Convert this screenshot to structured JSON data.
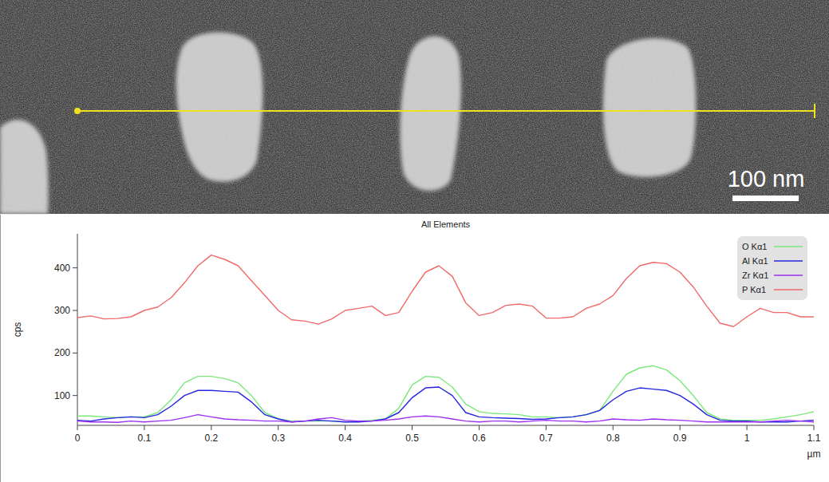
{
  "chart_data": {
    "type": "line",
    "title": "All Elements",
    "x_label": "µm",
    "y_label": "cps",
    "x": [
      0,
      0.02,
      0.04,
      0.06,
      0.08,
      0.1,
      0.12,
      0.14,
      0.16,
      0.18,
      0.2,
      0.22,
      0.24,
      0.26,
      0.28,
      0.3,
      0.32,
      0.34,
      0.36,
      0.38,
      0.4,
      0.42,
      0.44,
      0.46,
      0.48,
      0.5,
      0.52,
      0.54,
      0.56,
      0.58,
      0.6,
      0.62,
      0.64,
      0.66,
      0.68,
      0.7,
      0.72,
      0.74,
      0.76,
      0.78,
      0.8,
      0.82,
      0.84,
      0.86,
      0.88,
      0.9,
      0.92,
      0.94,
      0.96,
      0.98,
      1.0,
      1.02,
      1.04,
      1.06,
      1.08,
      1.1
    ],
    "series": [
      {
        "name": "O Kα1",
        "color": "#7be87b",
        "values": [
          52,
          52,
          50,
          48,
          50,
          50,
          60,
          90,
          130,
          145,
          145,
          140,
          130,
          100,
          60,
          45,
          40,
          40,
          40,
          40,
          38,
          40,
          42,
          45,
          70,
          125,
          145,
          143,
          120,
          80,
          62,
          58,
          57,
          55,
          50,
          50,
          48,
          50,
          55,
          65,
          110,
          150,
          165,
          170,
          160,
          135,
          100,
          60,
          45,
          42,
          42,
          42,
          45,
          50,
          55,
          62
        ]
      },
      {
        "name": "Al Kα1",
        "color": "#2626e0",
        "values": [
          42,
          40,
          45,
          48,
          50,
          48,
          55,
          75,
          100,
          112,
          112,
          110,
          108,
          85,
          55,
          45,
          38,
          40,
          42,
          40,
          38,
          38,
          40,
          45,
          60,
          95,
          118,
          120,
          100,
          60,
          50,
          48,
          47,
          46,
          44,
          45,
          48,
          50,
          55,
          65,
          90,
          110,
          118,
          115,
          112,
          100,
          80,
          55,
          42,
          40,
          40,
          38,
          38,
          38,
          40,
          42
        ]
      },
      {
        "name": "Zr Kα1",
        "color": "#9b30f0",
        "values": [
          40,
          38,
          38,
          37,
          40,
          38,
          40,
          42,
          48,
          55,
          50,
          45,
          43,
          42,
          40,
          40,
          38,
          40,
          45,
          48,
          42,
          40,
          40,
          42,
          45,
          50,
          52,
          50,
          45,
          40,
          38,
          40,
          40,
          38,
          40,
          42,
          40,
          40,
          38,
          40,
          45,
          43,
          42,
          45,
          43,
          42,
          40,
          38,
          38,
          38,
          38,
          38,
          40,
          42,
          40,
          38
        ]
      },
      {
        "name": "P Kα1",
        "color": "#f06a6a",
        "values": [
          283,
          287,
          280,
          281,
          285,
          300,
          308,
          330,
          365,
          405,
          430,
          420,
          405,
          370,
          335,
          300,
          278,
          275,
          268,
          280,
          300,
          305,
          310,
          288,
          295,
          345,
          390,
          405,
          380,
          318,
          288,
          295,
          312,
          315,
          310,
          282,
          282,
          285,
          305,
          315,
          335,
          375,
          405,
          413,
          410,
          390,
          355,
          310,
          270,
          262,
          285,
          305,
          295,
          295,
          285,
          285
        ]
      }
    ],
    "xlim": [
      0,
      1.1
    ],
    "xticks": [
      0,
      0.1,
      0.2,
      0.3,
      0.4,
      0.5,
      0.6,
      0.7,
      0.8,
      0.9,
      1,
      1.1
    ],
    "ylim": [
      30,
      480
    ],
    "yticks": [
      100,
      200,
      300,
      400
    ],
    "grid": false,
    "legend": "top-right"
  },
  "micrograph": {
    "scale_bar_label": "100 nm"
  }
}
